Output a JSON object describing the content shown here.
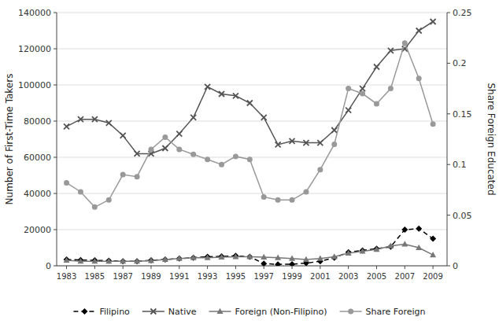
{
  "chart_data": {
    "type": "line",
    "x": [
      1983,
      1984,
      1985,
      1986,
      1987,
      1988,
      1989,
      1990,
      1991,
      1992,
      1993,
      1994,
      1995,
      1996,
      1997,
      1998,
      1999,
      2000,
      2001,
      2002,
      2003,
      2004,
      2005,
      2006,
      2007,
      2008,
      2009
    ],
    "xlim": [
      1982.3,
      2010.0
    ],
    "xticks": [
      1983,
      1985,
      1987,
      1989,
      1991,
      1993,
      1995,
      1997,
      1999,
      2001,
      2003,
      2005,
      2007,
      2009
    ],
    "ylabel": "Number of First-Time Takers",
    "y2label": "Share Foreign Educated",
    "ylim": [
      0,
      140000
    ],
    "yticks": [
      0,
      20000,
      40000,
      60000,
      80000,
      100000,
      120000,
      140000
    ],
    "y2lim": [
      0,
      0.25
    ],
    "y2ticks": [
      0,
      0.05,
      0.1,
      0.15,
      0.2,
      0.25
    ],
    "grid": true,
    "legend": "bottom",
    "series": [
      {
        "name": "Filipino",
        "color": "#000000",
        "marker": "diamond",
        "line_style": "dashed",
        "values": [
          3500,
          3200,
          3000,
          2800,
          2500,
          2500,
          3000,
          3500,
          4000,
          4500,
          5000,
          5200,
          5500,
          5000,
          1200,
          800,
          900,
          1500,
          2500,
          4500,
          7500,
          8500,
          9500,
          10500,
          20000,
          20500,
          15000
        ]
      },
      {
        "name": "Native",
        "color": "#555555",
        "marker": "x",
        "line_style": "solid",
        "values": [
          77000,
          81000,
          81000,
          79000,
          72000,
          62000,
          62000,
          65000,
          73000,
          82000,
          99000,
          95000,
          94000,
          90000,
          82000,
          67000,
          69000,
          68000,
          68000,
          75000,
          86000,
          98000,
          110000,
          119000,
          120000,
          130000,
          135000
        ]
      },
      {
        "name": "Foreign (Non-Filipino)",
        "color": "#777777",
        "marker": "triangle",
        "line_style": "solid",
        "values": [
          3000,
          2500,
          2500,
          2500,
          2500,
          2500,
          2800,
          3500,
          4000,
          4500,
          4500,
          4800,
          5000,
          5000,
          4800,
          4500,
          4000,
          3500,
          4000,
          5000,
          7000,
          8000,
          9000,
          11000,
          12000,
          10000,
          6000
        ]
      },
      {
        "name": "Share Foreign",
        "color": "#999999",
        "marker": "circle",
        "line_style": "solid",
        "axis": "y2",
        "values": [
          0.082,
          0.073,
          0.058,
          0.065,
          0.09,
          0.088,
          0.115,
          0.127,
          0.115,
          0.11,
          0.105,
          0.1,
          0.108,
          0.105,
          0.068,
          0.065,
          0.065,
          0.073,
          0.095,
          0.12,
          0.175,
          0.17,
          0.16,
          0.175,
          0.22,
          0.185,
          0.14
        ]
      }
    ]
  }
}
